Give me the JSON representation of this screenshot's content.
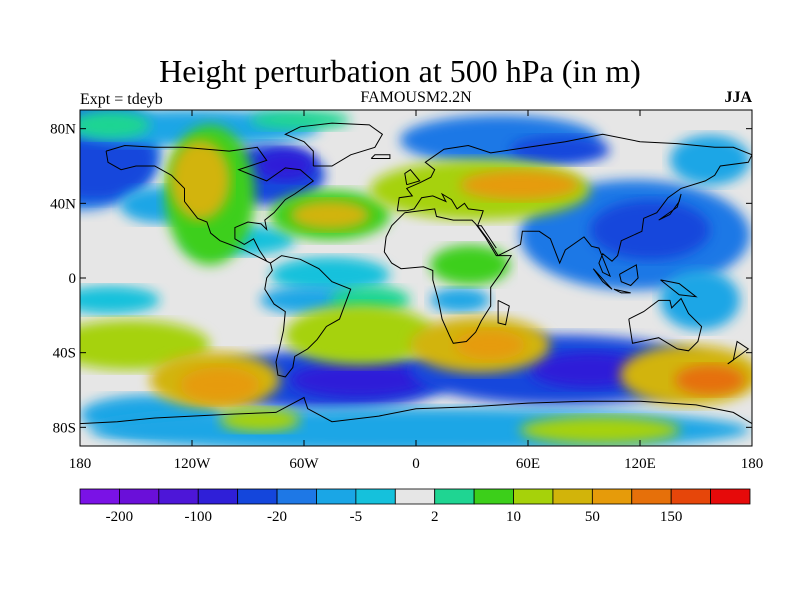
{
  "header": {
    "title": "Height perturbation at 500 hPa (in m)",
    "experiment": "Expt = tdeyb",
    "model": "FAMOUSM2.2N",
    "season": "JJA"
  },
  "map": {
    "projection": "cylindrical-equidistant",
    "lon_range": [
      -180,
      180
    ],
    "lat_range": [
      -90,
      90
    ],
    "lat_ticks": [
      {
        "value": 80,
        "label": "80N"
      },
      {
        "value": 40,
        "label": "40N"
      },
      {
        "value": 0,
        "label": "0"
      },
      {
        "value": -40,
        "label": "40S"
      },
      {
        "value": -80,
        "label": "80S"
      }
    ],
    "lon_ticks": [
      {
        "value": -180,
        "label": "180"
      },
      {
        "value": -120,
        "label": "120W"
      },
      {
        "value": -60,
        "label": "60W"
      },
      {
        "value": 0,
        "label": "0"
      },
      {
        "value": 60,
        "label": "60E"
      },
      {
        "value": 120,
        "label": "120E"
      },
      {
        "value": 180,
        "label": "180"
      }
    ]
  },
  "colorbar": {
    "colors": [
      "#7a12e6",
      "#6a0fd9",
      "#4d16d8",
      "#2f1fd8",
      "#1446dc",
      "#1e78e6",
      "#1aa6e6",
      "#15c1dc",
      "#e6e6e6",
      "#1fd592",
      "#3ccf1a",
      "#a6d20a",
      "#d2b40a",
      "#e69b0a",
      "#e6700a",
      "#e6460a",
      "#e60a0a"
    ],
    "labels": [
      {
        "after_box": 1,
        "text": "-200"
      },
      {
        "after_box": 3,
        "text": "-100"
      },
      {
        "after_box": 5,
        "text": "-20"
      },
      {
        "after_box": 7,
        "text": "-5"
      },
      {
        "after_box": 9,
        "text": "2"
      },
      {
        "after_box": 11,
        "text": "10"
      },
      {
        "after_box": 13,
        "text": "50"
      },
      {
        "after_box": 15,
        "text": "150"
      }
    ]
  }
}
